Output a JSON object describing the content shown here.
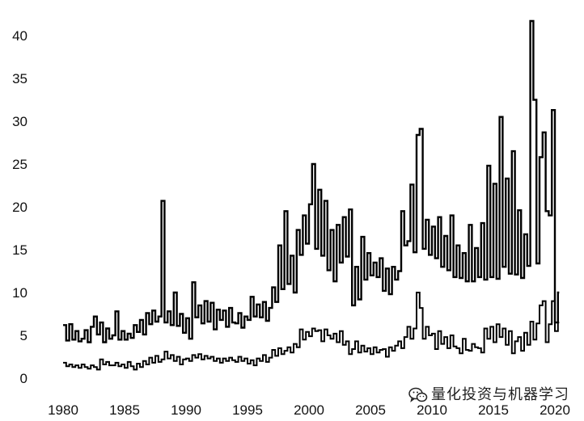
{
  "watermark": {
    "icon": "wechat-icon",
    "text": "量化投资与机器学习"
  },
  "chart_data": {
    "type": "line",
    "xlim": [
      1980,
      2020.25
    ],
    "ylim": [
      0,
      42
    ],
    "grid": false,
    "legend": "none",
    "x_ticks": [
      1980,
      1985,
      1990,
      1995,
      2000,
      2005,
      2010,
      2015,
      2020
    ],
    "y_ticks": [
      0,
      5,
      10,
      15,
      20,
      25,
      30,
      35,
      40
    ],
    "x": [
      1980,
      1980.25,
      1980.5,
      1980.75,
      1981,
      1981.25,
      1981.5,
      1981.75,
      1982,
      1982.25,
      1982.5,
      1982.75,
      1983,
      1983.25,
      1983.5,
      1983.75,
      1984,
      1984.25,
      1984.5,
      1984.75,
      1985,
      1985.25,
      1985.5,
      1985.75,
      1986,
      1986.25,
      1986.5,
      1986.75,
      1987,
      1987.25,
      1987.5,
      1987.75,
      1988,
      1988.25,
      1988.5,
      1988.75,
      1989,
      1989.25,
      1989.5,
      1989.75,
      1990,
      1990.25,
      1990.5,
      1990.75,
      1991,
      1991.25,
      1991.5,
      1991.75,
      1992,
      1992.25,
      1992.5,
      1992.75,
      1993,
      1993.25,
      1993.5,
      1993.75,
      1994,
      1994.25,
      1994.5,
      1994.75,
      1995,
      1995.25,
      1995.5,
      1995.75,
      1996,
      1996.25,
      1996.5,
      1996.75,
      1997,
      1997.25,
      1997.5,
      1997.75,
      1998,
      1998.25,
      1998.5,
      1998.75,
      1999,
      1999.25,
      1999.5,
      1999.75,
      2000,
      2000.25,
      2000.5,
      2000.75,
      2001,
      2001.25,
      2001.5,
      2001.75,
      2002,
      2002.25,
      2002.5,
      2002.75,
      2003,
      2003.25,
      2003.5,
      2003.75,
      2004,
      2004.25,
      2004.5,
      2004.75,
      2005,
      2005.25,
      2005.5,
      2005.75,
      2006,
      2006.25,
      2006.5,
      2006.75,
      2007,
      2007.25,
      2007.5,
      2007.75,
      2008,
      2008.25,
      2008.5,
      2008.75,
      2009,
      2009.25,
      2009.5,
      2009.75,
      2010,
      2010.25,
      2010.5,
      2010.75,
      2011,
      2011.25,
      2011.5,
      2011.75,
      2012,
      2012.25,
      2012.5,
      2012.75,
      2013,
      2013.25,
      2013.5,
      2013.75,
      2014,
      2014.25,
      2014.5,
      2014.75,
      2015,
      2015.25,
      2015.5,
      2015.75,
      2016,
      2016.25,
      2016.5,
      2016.75,
      2017,
      2017.25,
      2017.5,
      2017.75,
      2018,
      2018.25,
      2018.5,
      2018.75,
      2019,
      2019.25,
      2019.5,
      2019.75,
      2020,
      2020.25
    ],
    "series": [
      {
        "color": "#000000",
        "values": [
          6.2,
          4.4,
          6.3,
          4.5,
          5.5,
          4.3,
          4.6,
          5.6,
          4.2,
          6.0,
          7.2,
          5.1,
          6.5,
          4.2,
          5.8,
          4.6,
          5.0,
          7.8,
          4.5,
          5.5,
          4.5,
          5.2,
          4.7,
          6.2,
          5.4,
          6.8,
          5.1,
          7.6,
          6.3,
          7.9,
          6.6,
          7.2,
          20.7,
          6.5,
          7.8,
          6.2,
          10.0,
          6.1,
          7.5,
          5.3,
          7.0,
          4.6,
          11.2,
          7.1,
          8.5,
          6.4,
          9.0,
          6.6,
          8.8,
          5.7,
          8.0,
          6.8,
          7.9,
          6.0,
          8.2,
          6.5,
          6.4,
          7.6,
          5.9,
          7.2,
          6.8,
          9.5,
          7.2,
          8.6,
          7.1,
          8.9,
          6.7,
          8.2,
          10.6,
          8.9,
          15.5,
          10.4,
          19.5,
          11.0,
          14.3,
          10.0,
          17.3,
          14.4,
          19.0,
          15.7,
          20.3,
          25.0,
          15.1,
          22.0,
          14.3,
          20.7,
          12.6,
          17.3,
          11.3,
          17.9,
          13.5,
          18.8,
          14.2,
          19.7,
          8.5,
          13.0,
          9.2,
          16.5,
          11.5,
          14.6,
          12.0,
          13.5,
          11.8,
          14.0,
          10.2,
          12.8,
          9.8,
          13.0,
          11.5,
          12.5,
          19.5,
          15.5,
          16.0,
          22.6,
          14.7,
          28.4,
          29.1,
          15.1,
          18.5,
          14.4,
          17.7,
          14.0,
          18.8,
          13.0,
          16.6,
          12.6,
          19.0,
          11.8,
          15.5,
          11.7,
          14.6,
          11.3,
          17.9,
          11.3,
          15.2,
          11.8,
          18.1,
          11.5,
          24.8,
          11.8,
          22.7,
          11.6,
          30.5,
          13.0,
          23.3,
          12.2,
          26.5,
          12.1,
          19.6,
          11.7,
          16.8,
          13.1,
          41.7,
          32.5,
          13.4,
          25.8,
          28.7,
          19.5,
          19.0,
          31.3,
          6.5,
          10.0
        ]
      },
      {
        "color": "#000000",
        "values": [
          1.8,
          1.4,
          1.6,
          1.3,
          1.5,
          1.2,
          1.6,
          1.3,
          1.1,
          1.5,
          1.3,
          1.0,
          2.2,
          1.6,
          1.9,
          1.5,
          1.5,
          1.8,
          1.4,
          1.6,
          1.2,
          1.9,
          1.4,
          1.0,
          1.7,
          1.3,
          2.0,
          1.6,
          2.4,
          1.8,
          2.6,
          1.9,
          2.2,
          3.1,
          2.3,
          2.7,
          2.0,
          2.5,
          1.6,
          2.2,
          2.3,
          2.0,
          2.7,
          2.4,
          2.8,
          2.2,
          2.6,
          2.3,
          2.5,
          2.0,
          2.3,
          1.8,
          2.3,
          2.0,
          2.4,
          2.1,
          1.9,
          2.5,
          2.0,
          2.3,
          1.7,
          2.1,
          1.5,
          2.3,
          2.0,
          2.7,
          1.9,
          2.4,
          3.3,
          2.6,
          3.5,
          2.8,
          3.2,
          3.6,
          3.0,
          4.0,
          3.6,
          5.7,
          4.5,
          5.4,
          4.9,
          5.8,
          5.5,
          5.6,
          4.3,
          5.7,
          5.0,
          4.6,
          5.2,
          4.2,
          5.5,
          3.9,
          4.3,
          2.8,
          3.4,
          4.3,
          3.0,
          3.8,
          3.1,
          3.5,
          2.8,
          3.6,
          3.0,
          3.3,
          3.4,
          2.5,
          3.6,
          3.2,
          3.8,
          4.3,
          3.5,
          4.8,
          6.0,
          4.6,
          5.8,
          10.0,
          8.2,
          4.6,
          6.0,
          5.0,
          5.2,
          3.4,
          5.5,
          4.0,
          4.8,
          3.5,
          5.0,
          3.7,
          3.5,
          2.9,
          4.6,
          3.3,
          3.2,
          4.0,
          3.6,
          3.5,
          3.0,
          5.8,
          4.6,
          6.0,
          4.2,
          6.3,
          4.8,
          5.8,
          3.9,
          5.5,
          2.9,
          4.3,
          4.8,
          3.2,
          5.3,
          3.9,
          6.6,
          4.5,
          6.4,
          8.5,
          9.0,
          4.2,
          6.3,
          9.0,
          5.5,
          6.5
        ]
      }
    ]
  }
}
